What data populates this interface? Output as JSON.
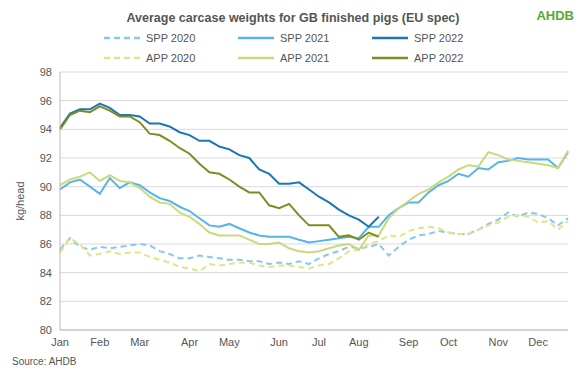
{
  "chart_data": {
    "type": "line",
    "title": "Average carcase weights for GB finished pigs (EU spec)",
    "logo": "AHDB",
    "source": "Source: AHDB",
    "y_label": "kg/head",
    "legend": "top",
    "grid": true,
    "categories": [
      "Jan",
      null,
      null,
      null,
      "Feb",
      null,
      null,
      null,
      "Mar",
      null,
      null,
      null,
      null,
      "Apr",
      null,
      null,
      null,
      "May",
      null,
      null,
      null,
      null,
      "Jun",
      null,
      null,
      null,
      "Jul",
      null,
      null,
      null,
      "Aug",
      null,
      null,
      null,
      null,
      "Sep",
      null,
      null,
      null,
      "Oct",
      null,
      null,
      null,
      null,
      "Nov",
      null,
      null,
      null,
      "Dec",
      null,
      null,
      null
    ],
    "ylim": [
      80,
      98
    ],
    "yticks": [
      80,
      82,
      84,
      86,
      88,
      90,
      92,
      94,
      96,
      98
    ],
    "series": [
      {
        "name": "SPP 2020",
        "color": "#86c8f0",
        "line_style": "dashed",
        "values": [
          85.6,
          86.4,
          85.8,
          85.6,
          85.8,
          85.7,
          85.8,
          85.9,
          86.0,
          85.9,
          85.5,
          85.3,
          85.0,
          85.0,
          85.2,
          85.1,
          85.0,
          84.9,
          84.9,
          84.8,
          84.8,
          84.6,
          84.7,
          84.6,
          84.8,
          84.6,
          85.0,
          85.3,
          85.5,
          85.8,
          85.7,
          85.8,
          86.0,
          85.2,
          85.8,
          86.3,
          86.6,
          86.7,
          86.9,
          86.8,
          86.7,
          86.7,
          87.0,
          87.4,
          87.7,
          88.2,
          87.9,
          88.2,
          88.1,
          87.8,
          87.3,
          87.8
        ]
      },
      {
        "name": "SPP 2021",
        "color": "#55b4ea",
        "line_style": "solid",
        "values": [
          89.8,
          90.3,
          90.5,
          90.0,
          89.5,
          90.6,
          89.9,
          90.3,
          90.1,
          89.6,
          89.2,
          89.0,
          88.6,
          88.3,
          87.8,
          87.3,
          87.2,
          87.4,
          87.1,
          86.8,
          86.6,
          86.5,
          86.5,
          86.5,
          86.3,
          86.1,
          86.2,
          86.3,
          86.4,
          86.5,
          86.4,
          87.2,
          87.2,
          88.0,
          88.5,
          88.9,
          88.9,
          89.6,
          90.1,
          90.4,
          90.9,
          90.7,
          91.3,
          91.2,
          91.7,
          91.8,
          92.0,
          91.9,
          91.9,
          91.9,
          91.3,
          92.4
        ]
      },
      {
        "name": "SPP 2022",
        "color": "#1b77b4",
        "line_style": "solid",
        "values": [
          94.1,
          95.1,
          95.4,
          95.4,
          95.8,
          95.5,
          95.0,
          95.0,
          94.9,
          94.4,
          94.4,
          94.2,
          93.8,
          93.6,
          93.2,
          93.2,
          92.8,
          92.6,
          92.2,
          92.0,
          91.2,
          90.9,
          90.2,
          90.2,
          90.3,
          89.8,
          89.3,
          88.9,
          88.4,
          88.0,
          87.7,
          87.2,
          87.9,
          null,
          null,
          null,
          null,
          null,
          null,
          null,
          null,
          null,
          null,
          null,
          null,
          null,
          null,
          null,
          null,
          null,
          null,
          null
        ]
      },
      {
        "name": "APP 2020",
        "color": "#e2e487",
        "line_style": "dashed",
        "values": [
          85.4,
          86.4,
          86.0,
          85.2,
          85.3,
          85.5,
          85.3,
          85.4,
          85.4,
          85.1,
          84.9,
          84.7,
          84.4,
          84.3,
          84.1,
          84.6,
          84.5,
          84.6,
          84.7,
          84.7,
          84.5,
          84.4,
          84.5,
          84.5,
          84.4,
          84.3,
          84.5,
          84.6,
          85.0,
          85.5,
          85.6,
          86.0,
          86.2,
          86.6,
          86.5,
          86.9,
          87.1,
          87.2,
          87.1,
          86.8,
          86.7,
          86.7,
          87.0,
          87.3,
          87.5,
          87.9,
          88.0,
          87.9,
          87.5,
          87.6,
          87.0,
          87.6
        ]
      },
      {
        "name": "APP 2021",
        "color": "#cbd97a",
        "line_style": "solid",
        "values": [
          90.1,
          90.5,
          90.7,
          91.0,
          90.4,
          90.8,
          90.4,
          90.3,
          89.9,
          89.3,
          88.9,
          88.8,
          88.2,
          87.9,
          87.4,
          86.8,
          86.6,
          86.6,
          86.6,
          86.3,
          86.0,
          86.0,
          86.1,
          85.7,
          85.5,
          85.4,
          85.5,
          85.7,
          85.9,
          86.0,
          85.6,
          86.6,
          86.6,
          87.8,
          88.5,
          89.0,
          89.5,
          89.8,
          90.3,
          90.7,
          91.2,
          91.5,
          91.4,
          92.4,
          92.2,
          91.9,
          91.8,
          91.7,
          91.6,
          91.5,
          91.3,
          92.5
        ]
      },
      {
        "name": "APP 2022",
        "color": "#7d8c22",
        "line_style": "solid",
        "values": [
          94.0,
          95.0,
          95.3,
          95.2,
          95.6,
          95.3,
          94.9,
          94.9,
          94.5,
          93.7,
          93.6,
          93.2,
          92.7,
          92.3,
          91.6,
          91.0,
          90.9,
          90.5,
          90.0,
          89.6,
          89.6,
          88.7,
          88.5,
          88.8,
          88.0,
          87.3,
          87.3,
          87.3,
          86.5,
          86.6,
          86.3,
          86.8,
          86.5,
          null,
          null,
          null,
          null,
          null,
          null,
          null,
          null,
          null,
          null,
          null,
          null,
          null,
          null,
          null,
          null,
          null,
          null,
          null
        ]
      }
    ]
  }
}
